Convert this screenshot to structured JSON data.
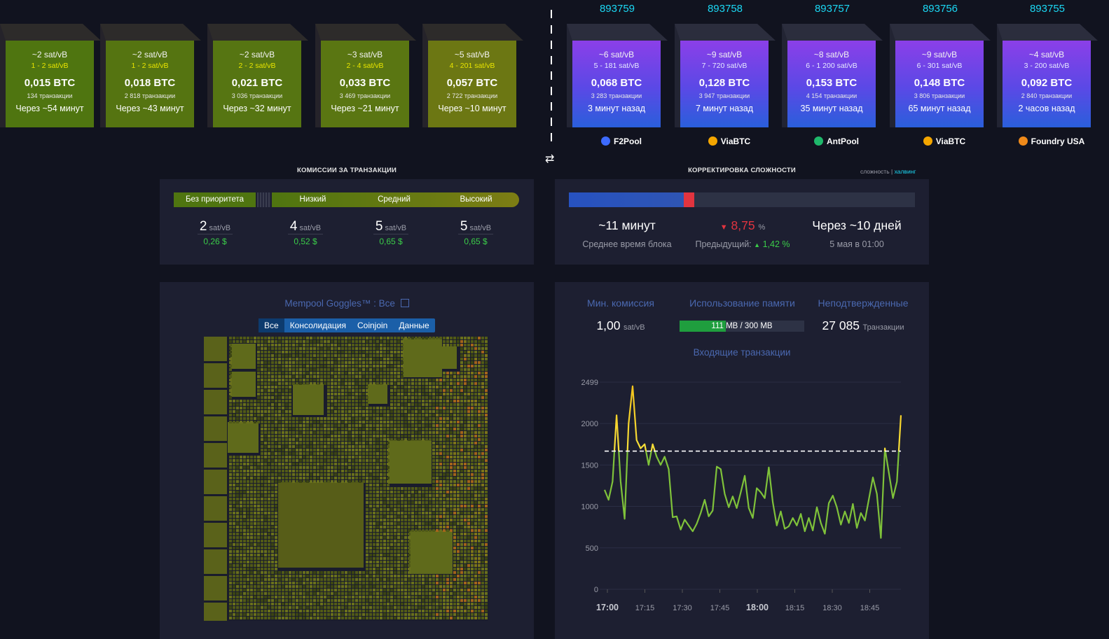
{
  "pending_blocks": [
    {
      "median": "~2 sat/vB",
      "range": "1 - 2 sat/vB",
      "size": "0,015 BTC",
      "tx": "134 транзакции",
      "time": "Через ~54 минут",
      "color": "#4f7510"
    },
    {
      "median": "~2 sat/vB",
      "range": "1 - 2 sat/vB",
      "size": "0,018 BTC",
      "tx": "2 818 транзакции",
      "time": "Через ~43 минут",
      "color": "#557411"
    },
    {
      "median": "~2 sat/vB",
      "range": "2 - 2 sat/vB",
      "size": "0,021 BTC",
      "tx": "3 036 транзакции",
      "time": "Через ~32 минут",
      "color": "#567512"
    },
    {
      "median": "~3 sat/vB",
      "range": "2 - 4 sat/vB",
      "size": "0,033 BTC",
      "tx": "3 469 транзакции",
      "time": "Через ~21 минут",
      "color": "#5a7612"
    },
    {
      "median": "~5 sat/vB",
      "range": "4 - 201 sat/vB",
      "size": "0,057 BTC",
      "tx": "2 722 транзакции",
      "time": "Через ~10 минут",
      "color": "#6c7713"
    }
  ],
  "mined_blocks": [
    {
      "height": "893759",
      "median": "~6 sat/vB",
      "range": "5 - 181 sat/vB",
      "size": "0,068 BTC",
      "tx": "3 283 транзакции",
      "time": "3 минут назад",
      "pool": "F2Pool",
      "pool_icon": "f2pool-icon",
      "pool_color": "#3d6bff"
    },
    {
      "height": "893758",
      "median": "~9 sat/vB",
      "range": "7 - 720 sat/vB",
      "size": "0,128 BTC",
      "tx": "3 947 транзакции",
      "time": "7 минут назад",
      "pool": "ViaBTC",
      "pool_icon": "viabtc-icon",
      "pool_color": "#f4a600"
    },
    {
      "height": "893757",
      "median": "~8 sat/vB",
      "range": "6 - 1 200 sat/vB",
      "size": "0,153 BTC",
      "tx": "4 154 транзакции",
      "time": "35 минут назад",
      "pool": "AntPool",
      "pool_icon": "antpool-icon",
      "pool_color": "#1fb86b"
    },
    {
      "height": "893756",
      "median": "~9 sat/vB",
      "range": "6 - 301 sat/vB",
      "size": "0,148 BTC",
      "tx": "3 806 транзакции",
      "time": "65 минут назад",
      "pool": "ViaBTC",
      "pool_icon": "viabtc-icon",
      "pool_color": "#f4a600"
    },
    {
      "height": "893755",
      "median": "~4 sat/vB",
      "range": "3 - 200 sat/vB",
      "size": "0,092 BTC",
      "tx": "2 840 транзакции",
      "time": "2 часов назад",
      "pool": "Foundry USA",
      "pool_icon": "foundry-icon",
      "pool_color": "#f08a1a"
    }
  ],
  "fees": {
    "title": "КОМИССИИ ЗА ТРАНЗАКЦИИ",
    "levels": [
      {
        "label": "Без приоритета",
        "value": "2",
        "unit": "sat/vB",
        "usd": "0,26 $"
      },
      {
        "label": "Низкий",
        "value": "4",
        "unit": "sat/vB",
        "usd": "0,52 $"
      },
      {
        "label": "Средний",
        "value": "5",
        "unit": "sat/vB",
        "usd": "0,65 $"
      },
      {
        "label": "Высокий",
        "value": "5",
        "unit": "sat/vB",
        "usd": "0,65 $"
      }
    ]
  },
  "difficulty": {
    "title": "КОРРЕКТИРОВКА СЛОЖНОСТИ",
    "link_difficulty": "сложность",
    "link_separator": "|",
    "link_halving": "халвинг",
    "progress": 0.345,
    "block_time": "~11 минут",
    "block_time_label": "Среднее время блока",
    "change": "8,75",
    "change_unit": "%",
    "previous_label": "Предыдущий:",
    "previous_value": "1,42 %",
    "eta": "Через ~10 дней",
    "eta_date": "5 мая в 01:00"
  },
  "goggles": {
    "title": "Mempool Goggles™ : Все",
    "tabs": [
      "Все",
      "Консолидация",
      "Coinjoin",
      "Данные"
    ],
    "active_tab": 0
  },
  "stats": {
    "min_fee_label": "Мин. комиссия",
    "min_fee_value": "1,00",
    "min_fee_unit": "sat/vB",
    "memory_label": "Использование памяти",
    "memory_value": "111 MB / 300 MB",
    "memory_fraction": 0.37,
    "unconfirmed_label": "Неподтвержденные",
    "unconfirmed_value": "27 085",
    "unconfirmed_unit": "Транзакции"
  },
  "chart_data": {
    "type": "line",
    "title": "Входящие транзакции",
    "yticks": [
      "0",
      "500",
      "1000",
      "1500",
      "2000",
      "2499"
    ],
    "ylim": [
      0,
      2499
    ],
    "xticks": [
      "17:00",
      "17:15",
      "17:30",
      "17:45",
      "18:00",
      "18:15",
      "18:30",
      "18:45"
    ],
    "threshold": 1667,
    "values": [
      1200,
      1080,
      1300,
      2100,
      1300,
      850,
      2000,
      2450,
      1800,
      1700,
      1750,
      1500,
      1750,
      1600,
      1500,
      1600,
      1450,
      870,
      880,
      720,
      840,
      770,
      700,
      790,
      920,
      1080,
      880,
      950,
      1480,
      1450,
      1150,
      990,
      1120,
      980,
      1170,
      1370,
      980,
      860,
      1220,
      1170,
      1100,
      1470,
      1050,
      770,
      940,
      730,
      760,
      860,
      770,
      910,
      700,
      860,
      710,
      990,
      800,
      670,
      1040,
      1130,
      990,
      780,
      940,
      800,
      1030,
      740,
      920,
      830,
      1090,
      1350,
      1150,
      620,
      1700,
      1400,
      1100,
      1300,
      2100
    ]
  }
}
